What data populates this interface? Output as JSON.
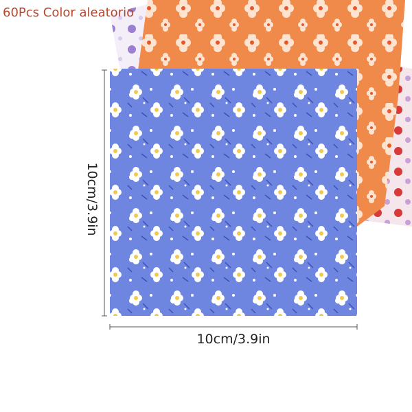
{
  "title": "60Pcs Color aleatorio",
  "height_label": "10cm/3.9in",
  "width_label": "10cm/3.9in"
}
